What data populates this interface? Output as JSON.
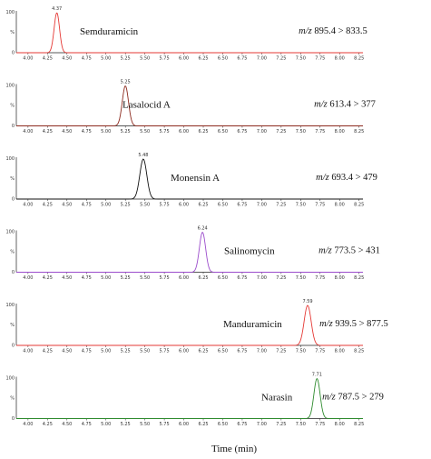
{
  "chart_data": {
    "type": "line",
    "xlabel": "Time (min)",
    "xlim": [
      3.85,
      8.3
    ],
    "xticks": [
      "4.00",
      "4.25",
      "4.50",
      "4.75",
      "5.00",
      "5.25",
      "5.50",
      "5.75",
      "6.00",
      "6.25",
      "6.50",
      "6.75",
      "7.00",
      "7.25",
      "7.50",
      "7.75",
      "8.00",
      "8.25"
    ],
    "ylim": [
      0,
      100
    ],
    "yticks": [
      "0",
      "%",
      "100"
    ],
    "panels": [
      {
        "name": "Semduramicin",
        "apex": 4.37,
        "apex_label": "4.37",
        "width": 0.035,
        "mz_prefix": "m/z",
        "mz_text": "895.4 > 833.5",
        "color": "#e53935"
      },
      {
        "name": "Lasalocid A",
        "apex": 5.25,
        "apex_label": "5.25",
        "width": 0.04,
        "mz_prefix": "m/z",
        "mz_text": "613.4 > 377",
        "color": "#8d2b1f"
      },
      {
        "name": "Monensin A",
        "apex": 5.48,
        "apex_label": "5.48",
        "width": 0.045,
        "mz_prefix": "m/z",
        "mz_text": "693.4 > 479",
        "color": "#111111"
      },
      {
        "name": "Salinomycin",
        "apex": 6.24,
        "apex_label": "6.24",
        "width": 0.04,
        "mz_prefix": "m/z",
        "mz_text": "773.5 > 431",
        "color": "#9c4dcc"
      },
      {
        "name": "Manduramicin",
        "apex": 7.59,
        "apex_label": "7.59",
        "width": 0.045,
        "mz_prefix": "m/z",
        "mz_text": "939.5 > 877.5",
        "color": "#e53935"
      },
      {
        "name": "Narasin",
        "apex": 7.71,
        "apex_label": "7.71",
        "width": 0.04,
        "mz_prefix": "m/z",
        "mz_text": "787.5 > 279",
        "color": "#2e8b2e"
      }
    ]
  }
}
